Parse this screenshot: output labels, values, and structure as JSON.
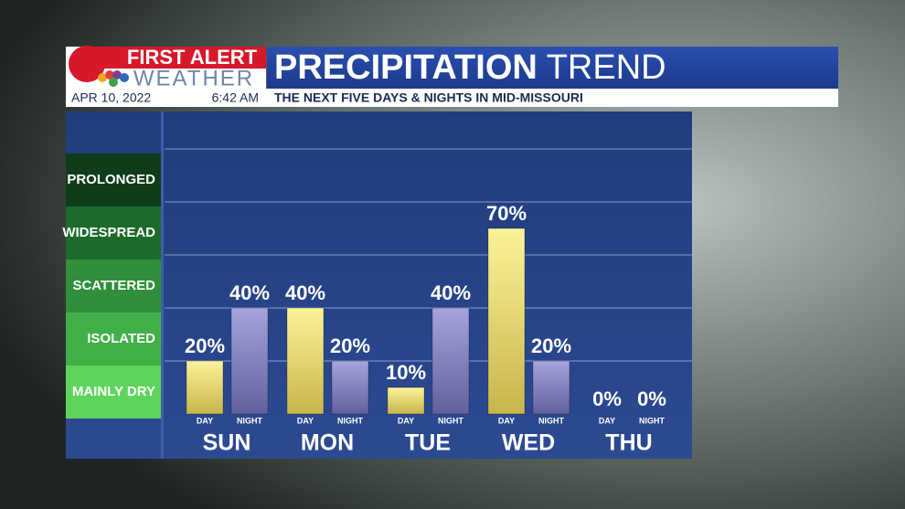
{
  "header": {
    "logo_line1": "FIRST ALERT",
    "logo_line2": "WEATHER",
    "date": "APR 10, 2022",
    "time": "6:42 AM",
    "title": [
      "PRECIPITATION",
      "TREND"
    ],
    "subtitle": "THE NEXT FIVE DAYS & NIGHTS IN MID-MISSOURI"
  },
  "chart_data": {
    "type": "bar",
    "categories": [
      "SUN",
      "MON",
      "TUE",
      "WED",
      "THU"
    ],
    "series": [
      {
        "name": "DAY",
        "color": "#efe27a",
        "values": [
          20,
          40,
          10,
          70,
          0
        ],
        "value_labels": [
          "20%",
          "40%",
          "10%",
          "70%",
          "0%"
        ]
      },
      {
        "name": "NIGHT",
        "color": "#8f8dc8",
        "values": [
          40,
          20,
          40,
          20,
          0
        ],
        "value_labels": [
          "40%",
          "20%",
          "40%",
          "20%",
          "0%"
        ]
      }
    ],
    "ylim": [
      0,
      100
    ],
    "bands": [
      {
        "label": "MAINLY DRY",
        "range": [
          0,
          20
        ],
        "color": "#5ed45c"
      },
      {
        "label": "ISOLATED",
        "range": [
          20,
          40
        ],
        "color": "#41b049"
      },
      {
        "label": "SCATTERED",
        "range": [
          40,
          60
        ],
        "color": "#2f8f3a"
      },
      {
        "label": "WIDESPREAD",
        "range": [
          60,
          80
        ],
        "color": "#1d6b2c"
      },
      {
        "label": "PROLONGED",
        "range": [
          80,
          100
        ],
        "color": "#0f3d1a"
      }
    ],
    "grid": true
  }
}
